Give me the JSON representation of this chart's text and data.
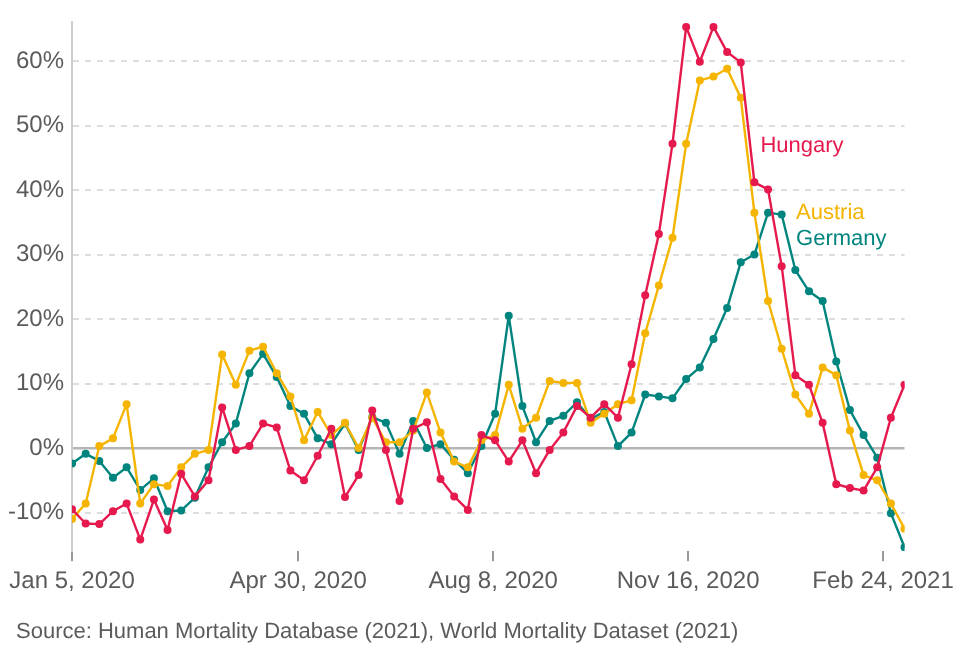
{
  "chart_data": {
    "type": "line",
    "x": [
      "2020-01-05",
      "2020-01-12",
      "2020-01-19",
      "2020-01-26",
      "2020-02-02",
      "2020-02-09",
      "2020-02-16",
      "2020-02-23",
      "2020-03-01",
      "2020-03-08",
      "2020-03-15",
      "2020-03-22",
      "2020-03-29",
      "2020-04-05",
      "2020-04-12",
      "2020-04-19",
      "2020-04-26",
      "2020-05-03",
      "2020-05-10",
      "2020-05-17",
      "2020-05-24",
      "2020-05-31",
      "2020-06-07",
      "2020-06-14",
      "2020-06-21",
      "2020-06-28",
      "2020-07-05",
      "2020-07-12",
      "2020-07-19",
      "2020-07-26",
      "2020-08-02",
      "2020-08-09",
      "2020-08-16",
      "2020-08-23",
      "2020-08-30",
      "2020-09-06",
      "2020-09-13",
      "2020-09-20",
      "2020-09-27",
      "2020-10-04",
      "2020-10-11",
      "2020-10-18",
      "2020-10-25",
      "2020-11-01",
      "2020-11-08",
      "2020-11-15",
      "2020-11-22",
      "2020-11-29",
      "2020-12-06",
      "2020-12-13",
      "2020-12-20",
      "2020-12-27",
      "2021-01-03",
      "2021-01-10",
      "2021-01-17",
      "2021-01-24",
      "2021-01-31",
      "2021-02-07",
      "2021-02-14",
      "2021-02-21",
      "2021-02-28",
      "2021-03-07"
    ],
    "series": [
      {
        "name": "Hungary",
        "color": "#e5194d",
        "values": [
          -9.5,
          -11.7,
          -11.8,
          -9.8,
          -8.6,
          -14.2,
          -8,
          -12.7,
          -4,
          -7.5,
          -5,
          6.3,
          -0.3,
          0.3,
          3.8,
          3.2,
          -3.5,
          -5,
          -1.2,
          3,
          -7.6,
          -4.2,
          5.8,
          -0.3,
          -8.2,
          3,
          4,
          -4.8,
          -7.5,
          -9.6,
          2,
          1.2,
          -2.1,
          1.2,
          -3.9,
          -0.3,
          2.4,
          6.5,
          4.7,
          6.8,
          4.7,
          13,
          23.7,
          33.2,
          47.2,
          65.3,
          59.9,
          65.3,
          61.4,
          59.8,
          41.2,
          40.1,
          28.2,
          11.3,
          9.8,
          3.9,
          -5.6,
          -6.2,
          -6.6,
          -3,
          4.7,
          9.8
        ]
      },
      {
        "name": "Austria",
        "color": "#f4b400",
        "values": [
          -11,
          -8.6,
          0.3,
          1.5,
          6.8,
          -8.6,
          -5.6,
          -5.9,
          -3,
          -0.9,
          -0.3,
          14.5,
          9.8,
          15.1,
          15.7,
          11.6,
          8,
          1.2,
          5.6,
          2,
          3.9,
          0,
          4.7,
          0.9,
          0.9,
          2.7,
          8.6,
          2.4,
          -2.1,
          -3,
          1.2,
          2,
          9.8,
          3,
          4.7,
          10.4,
          10.1,
          10.1,
          3.9,
          5.3,
          6.8,
          7.4,
          17.8,
          25.2,
          32.6,
          47.2,
          57,
          57.6,
          58.8,
          54.3,
          36.5,
          22.8,
          15.4,
          8.3,
          5.3,
          12.5,
          11.3,
          2.7,
          -4.2,
          -5,
          -8.6,
          -12.5
        ]
      },
      {
        "name": "Germany",
        "color": "#00847e",
        "values": [
          -2.4,
          -0.9,
          -2,
          -4.6,
          -3,
          -6.5,
          -4.7,
          -9.8,
          -9.7,
          -7.7,
          -3,
          0.9,
          3.8,
          11.6,
          14.6,
          11,
          6.5,
          5.3,
          1.5,
          0.6,
          3.8,
          -0.3,
          4.8,
          3.9,
          -0.9,
          4.2,
          0,
          0.6,
          -1.8,
          -3.9,
          0.3,
          5.3,
          20.5,
          6.5,
          0.9,
          4.2,
          5,
          7.1,
          4.5,
          5.6,
          0.3,
          2.4,
          8.3,
          8,
          7.7,
          10.7,
          12.5,
          16.9,
          21.7,
          28.8,
          30,
          36.5,
          36.2,
          27.6,
          24.3,
          22.8,
          13.4,
          5.9,
          2,
          -1.5,
          -10.1,
          -15.4
        ]
      }
    ],
    "xlim": [
      "2020-01-05",
      "2021-03-07"
    ],
    "xticks": [
      {
        "value": "2020-01-05",
        "label": "Jan 5, 2020"
      },
      {
        "value": "2020-04-30",
        "label": "Apr 30, 2020"
      },
      {
        "value": "2020-08-08",
        "label": "Aug 8, 2020"
      },
      {
        "value": "2020-11-16",
        "label": "Nov 16, 2020"
      },
      {
        "value": "2021-02-24",
        "label": "Feb 24, 2021"
      }
    ],
    "ylim": [
      -16,
      66
    ],
    "yticks": [
      {
        "value": -10,
        "label": "-10%"
      },
      {
        "value": 0,
        "label": "0%"
      },
      {
        "value": 10,
        "label": "10%"
      },
      {
        "value": 20,
        "label": "20%"
      },
      {
        "value": 30,
        "label": "30%"
      },
      {
        "value": 40,
        "label": "40%"
      },
      {
        "value": 50,
        "label": "50%"
      },
      {
        "value": 60,
        "label": "60%"
      }
    ],
    "grid": "y",
    "legend": false,
    "marker": "circle",
    "line_style": "solid",
    "annotations": [
      "Source: Human Mortality Database (2021), World Mortality Dataset (2021)"
    ]
  }
}
